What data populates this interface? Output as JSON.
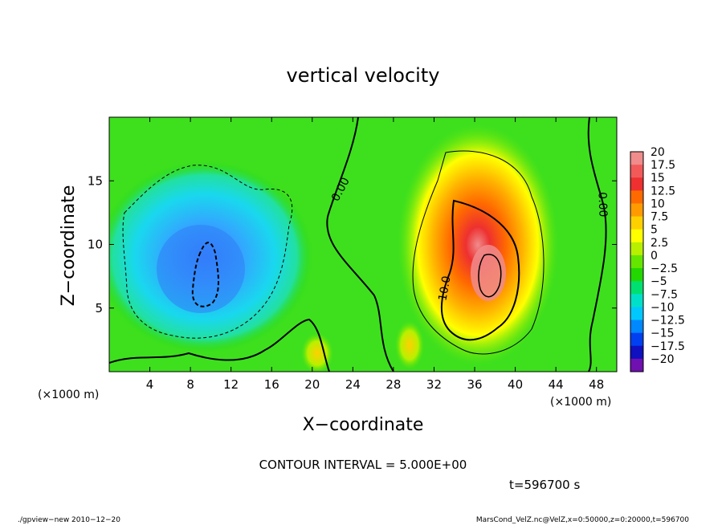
{
  "chart_data": {
    "type": "heatmap",
    "title": "vertical velocity",
    "xlabel": "X−coordinate",
    "ylabel": "Z−coordinate",
    "x_unit_label": "(×1000 m)",
    "y_unit_label": "(×1000 m)",
    "xlim": [
      0,
      50
    ],
    "ylim": [
      0,
      20
    ],
    "x_ticks": [
      4,
      8,
      12,
      16,
      20,
      24,
      28,
      32,
      36,
      40,
      44,
      48
    ],
    "y_ticks": [
      5,
      10,
      15
    ],
    "contour_interval_text": "CONTOUR INTERVAL = 5.000E+00",
    "contour_labels": [
      {
        "text": "0.00",
        "x": 22.5,
        "z": 14.5,
        "rotate": -62
      },
      {
        "text": "10.0",
        "x": 33.0,
        "z": 6.5,
        "rotate": -80
      },
      {
        "text": "0.00",
        "x": 48.0,
        "z": 13.0,
        "rotate": 88
      }
    ],
    "time_label": "t=596700 s",
    "colorbar": {
      "labels": [
        "20",
        "17.5",
        "15",
        "12.5",
        "10",
        "7.5",
        "5",
        "2.5",
        "0",
        "−2.5",
        "−5",
        "−7.5",
        "−10",
        "−12.5",
        "−15",
        "−17.5",
        "−20"
      ],
      "colors": [
        "#f08c8c",
        "#f25a5a",
        "#ee3030",
        "#ff6a00",
        "#ff9b00",
        "#ffd000",
        "#ffff00",
        "#b8f000",
        "#64e600",
        "#22d800",
        "#00e070",
        "#00e0c8",
        "#00c8ff",
        "#0088ff",
        "#0040f0",
        "#1010c0",
        "#7010b0"
      ]
    },
    "features": [
      {
        "kind": "updraft",
        "center_x": 37.0,
        "center_z": 8.0,
        "max": 20
      },
      {
        "kind": "downdraft",
        "center_x": 9.5,
        "center_z": 8.0,
        "min": -12
      }
    ]
  },
  "footer": {
    "left": "./gpview−new   2010−12−20",
    "right": "MarsCond_VelZ.nc@VelZ,x=0:50000,z=0:20000,t=596700"
  }
}
